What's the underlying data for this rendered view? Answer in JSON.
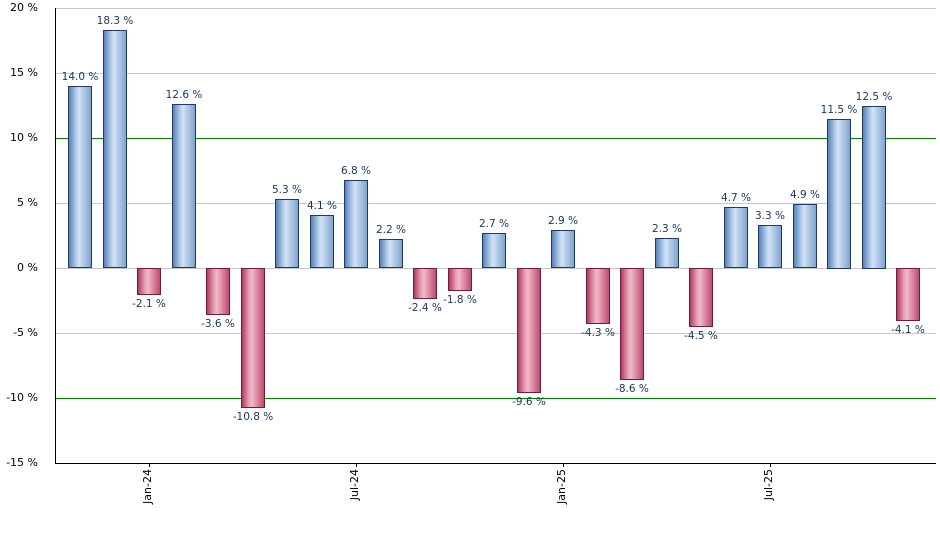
{
  "chart_data": {
    "type": "bar",
    "title": "",
    "xlabel": "",
    "ylabel": "",
    "ylim": [
      -15,
      20
    ],
    "grid": true,
    "legend": null,
    "values": [
      14.0,
      18.3,
      -2.1,
      12.6,
      -3.6,
      -10.8,
      5.3,
      4.1,
      6.8,
      2.2,
      -2.4,
      -1.8,
      2.7,
      -9.6,
      2.9,
      -4.3,
      -8.6,
      2.3,
      -4.5,
      4.7,
      3.3,
      4.9,
      11.5,
      12.5,
      -4.1
    ],
    "value_labels": [
      "14.0 %",
      "18.3 %",
      "-2.1 %",
      "12.6 %",
      "-3.6 %",
      "-10.8 %",
      "5.3 %",
      "4.1 %",
      "6.8 %",
      "2.2 %",
      "-2.4 %",
      "-1.8 %",
      "2.7 %",
      "-9.6 %",
      "2.9 %",
      "-4.3 %",
      "-8.6 %",
      "2.3 %",
      "-4.5 %",
      "4.7 %",
      "3.3 %",
      "4.9 %",
      "11.5 %",
      "12.5 %",
      "-4.1 %"
    ],
    "x_ticks": [
      {
        "index": 2,
        "label": "Jan-24"
      },
      {
        "index": 8,
        "label": "Jul-24"
      },
      {
        "index": 14,
        "label": "Jan-25"
      },
      {
        "index": 20,
        "label": "Jul-25"
      }
    ],
    "y_ticks": [
      {
        "value": 20,
        "label": "20 %"
      },
      {
        "value": 15,
        "label": "15 %"
      },
      {
        "value": 10,
        "label": "10 %"
      },
      {
        "value": 5,
        "label": "5 %"
      },
      {
        "value": 0,
        "label": "0 %"
      },
      {
        "value": -5,
        "label": "-5 %"
      },
      {
        "value": -10,
        "label": "-10 %"
      },
      {
        "value": -15,
        "label": "-15 %"
      }
    ],
    "reference_lines": [
      {
        "value": 10,
        "color": "#008000"
      },
      {
        "value": -10,
        "color": "#008000"
      }
    ],
    "colors": {
      "positive_fill": "#a9c6e8",
      "positive_edge": "#1f3864",
      "negative_fill": "#e49cb2",
      "negative_edge": "#6e1e3c",
      "gridline": "#c9c9c9",
      "axis": "#000000",
      "value_label_text": "#17365d"
    }
  }
}
